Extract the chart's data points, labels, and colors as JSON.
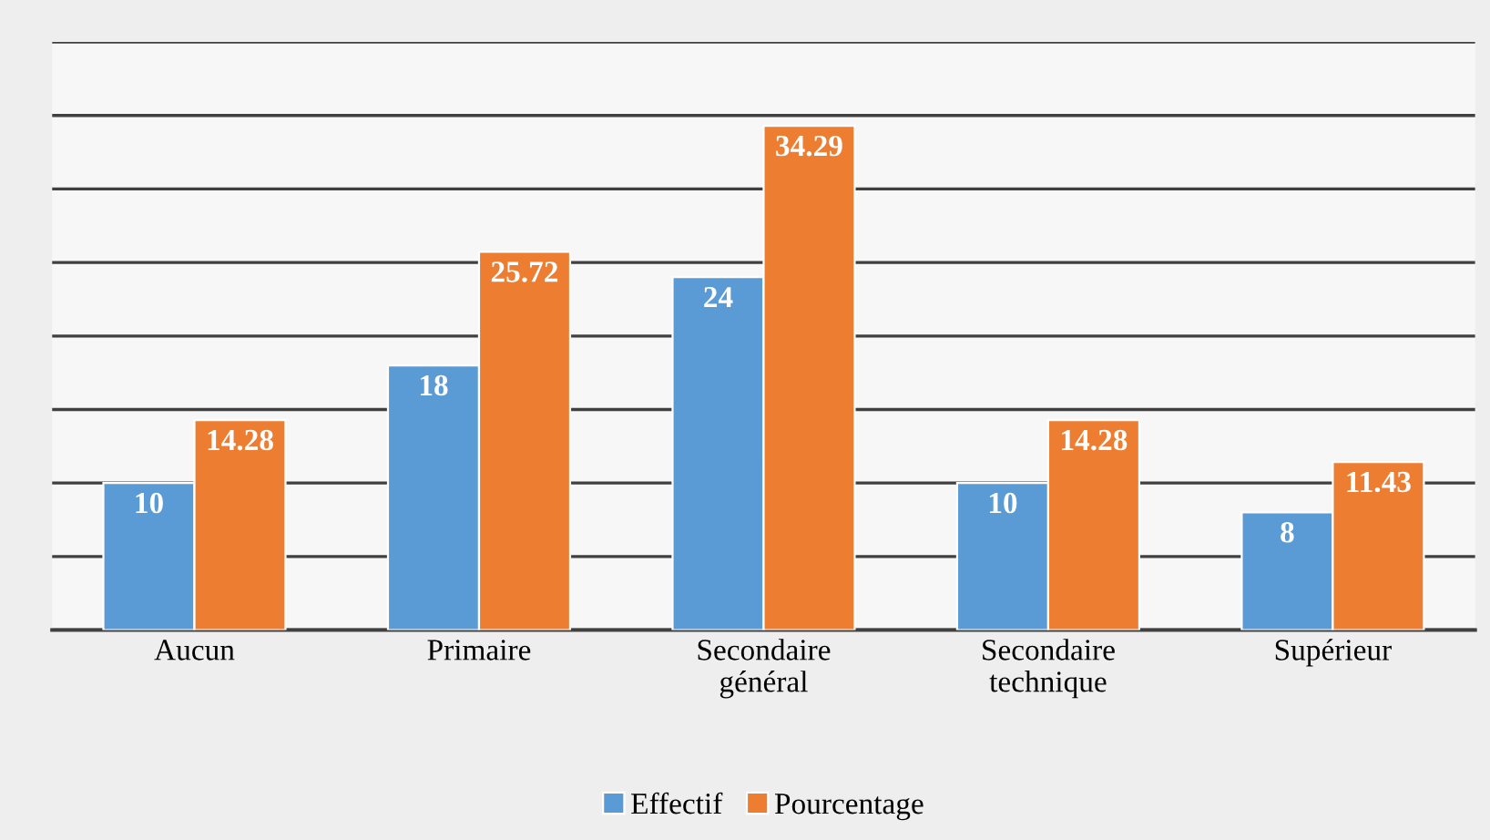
{
  "chart_data": {
    "type": "bar",
    "categories": [
      "Aucun",
      "Primaire",
      "Secondaire\ngénéral",
      "Secondaire\ntechnique",
      "Supérieur"
    ],
    "series": [
      {
        "name": "Effectif",
        "color": "#5b9bd5",
        "values": [
          10,
          18,
          24,
          10,
          8
        ]
      },
      {
        "name": "Pourcentage",
        "color": "#ed7d31",
        "values": [
          14.28,
          25.72,
          34.29,
          14.28,
          11.43
        ]
      }
    ],
    "ylim": [
      0,
      40
    ],
    "yticks": [
      {
        "value": 0,
        "label": null
      },
      {
        "value": 5,
        "label": null
      },
      {
        "value": 10,
        "label": null
      },
      {
        "value": 15,
        "label": null
      },
      {
        "value": 20,
        "label": null
      },
      {
        "value": 25,
        "label": null
      },
      {
        "value": 30,
        "label": null
      },
      {
        "value": 35,
        "label": null
      },
      {
        "value": 40,
        "label": null
      }
    ],
    "grid": "y",
    "legend": "bottom",
    "tick_labels": "x",
    "data_labels": true
  }
}
